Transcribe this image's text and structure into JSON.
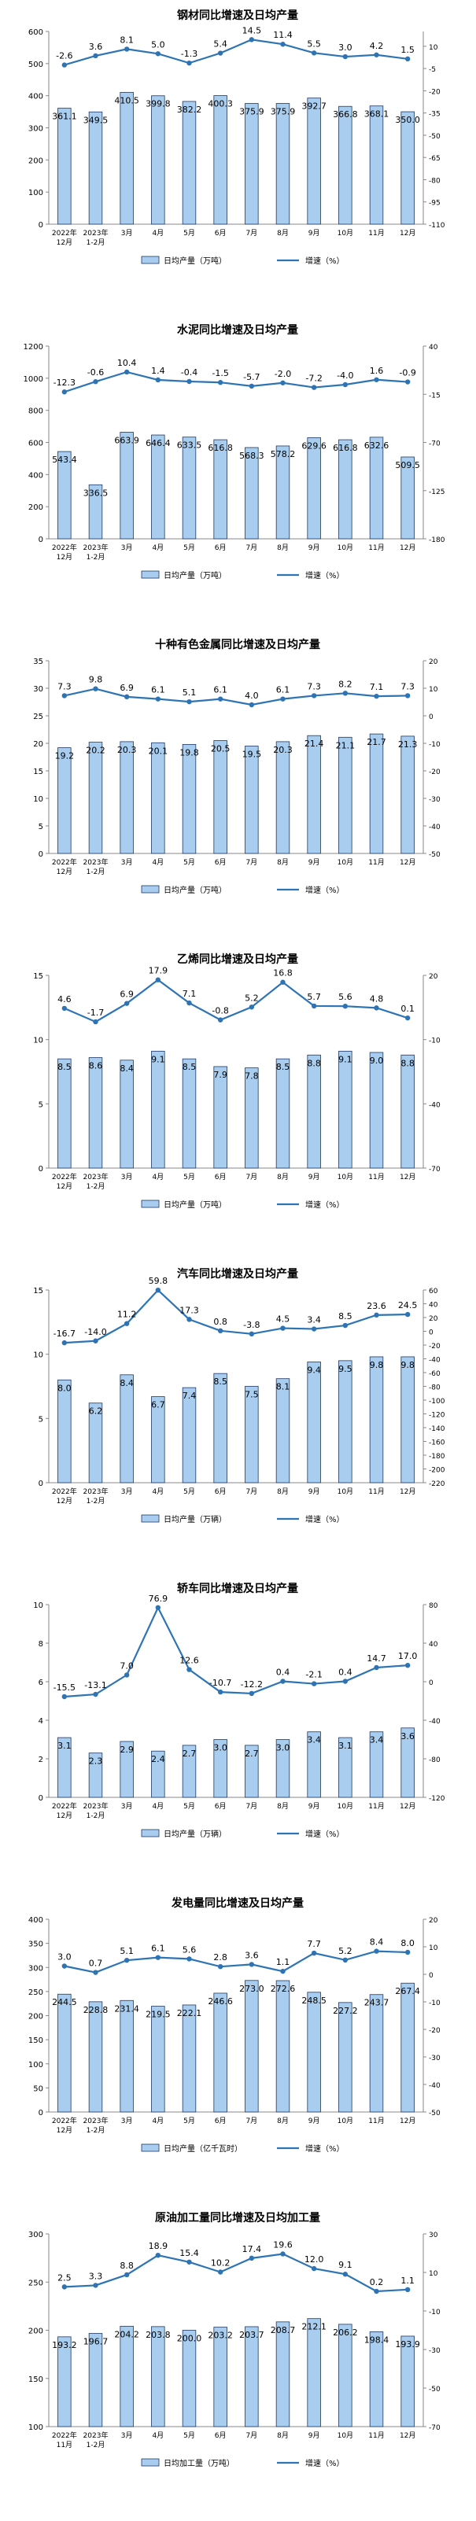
{
  "chart_data": [
    {
      "type": "bar",
      "title": "钢材同比增速及日均产量",
      "categories": [
        [
          "2022年",
          "12月"
        ],
        [
          "2023年",
          "1-2月"
        ],
        [
          "3月"
        ],
        [
          "4月"
        ],
        [
          "5月"
        ],
        [
          "6月"
        ],
        [
          "7月"
        ],
        [
          "8月"
        ],
        [
          "9月"
        ],
        [
          "10月"
        ],
        [
          "11月"
        ],
        [
          "12月"
        ]
      ],
      "series": [
        {
          "name": "日均产量（万吨）",
          "type": "bar",
          "axis": "left",
          "values": [
            361.1,
            349.5,
            410.5,
            399.8,
            382.2,
            400.3,
            375.9,
            375.9,
            392.7,
            366.8,
            368.1,
            350.0
          ]
        },
        {
          "name": "增速（%）",
          "type": "line",
          "axis": "right",
          "values": [
            -2.6,
            3.6,
            8.1,
            5.0,
            -1.3,
            5.4,
            14.5,
            11.4,
            5.5,
            3.0,
            4.2,
            1.5
          ]
        }
      ],
      "ylim_left": [
        0,
        600
      ],
      "ticks_left": [
        0,
        100,
        200,
        300,
        400,
        500,
        600
      ],
      "ylim_right": [
        -110,
        20
      ],
      "ticks_right": [
        -110,
        -95,
        -80,
        -65,
        -50,
        -35,
        -20,
        -5,
        10
      ],
      "grid": false,
      "legend": "bottom",
      "bar_color": "#a9cdee",
      "line_color": "#2e74b5"
    },
    {
      "type": "bar",
      "title": "水泥同比增速及日均产量",
      "categories": [
        [
          "2022年",
          "12月"
        ],
        [
          "2023年",
          "1-2月"
        ],
        [
          "3月"
        ],
        [
          "4月"
        ],
        [
          "5月"
        ],
        [
          "6月"
        ],
        [
          "7月"
        ],
        [
          "8月"
        ],
        [
          "9月"
        ],
        [
          "10月"
        ],
        [
          "11月"
        ],
        [
          "12月"
        ]
      ],
      "series": [
        {
          "name": "日均产量（万吨）",
          "type": "bar",
          "axis": "left",
          "values": [
            543.4,
            336.5,
            663.9,
            646.4,
            633.5,
            616.8,
            568.3,
            578.2,
            629.6,
            616.8,
            632.6,
            509.5
          ]
        },
        {
          "name": "增速（%）",
          "type": "line",
          "axis": "right",
          "values": [
            -12.3,
            -0.6,
            10.4,
            1.4,
            -0.4,
            -1.5,
            -5.7,
            -2.0,
            -7.2,
            -4.0,
            1.6,
            -0.9
          ]
        }
      ],
      "ylim_left": [
        0,
        1200
      ],
      "ticks_left": [
        0,
        200,
        400,
        600,
        800,
        1000,
        1200
      ],
      "ylim_right": [
        -180,
        40
      ],
      "ticks_right": [
        -180,
        -125,
        -70,
        -15,
        40
      ],
      "grid": false,
      "legend": "bottom",
      "bar_color": "#a9cdee",
      "line_color": "#2e74b5"
    },
    {
      "type": "bar",
      "title": "十种有色金属同比增速及日均产量",
      "categories": [
        [
          "2022年",
          "12月"
        ],
        [
          "2023年",
          "1-2月"
        ],
        [
          "3月"
        ],
        [
          "4月"
        ],
        [
          "5月"
        ],
        [
          "6月"
        ],
        [
          "7月"
        ],
        [
          "8月"
        ],
        [
          "9月"
        ],
        [
          "10月"
        ],
        [
          "11月"
        ],
        [
          "12月"
        ]
      ],
      "series": [
        {
          "name": "日均产量（万吨）",
          "type": "bar",
          "axis": "left",
          "values": [
            19.2,
            20.2,
            20.3,
            20.1,
            19.8,
            20.5,
            19.5,
            20.3,
            21.4,
            21.1,
            21.7,
            21.3
          ]
        },
        {
          "name": "增速（%）",
          "type": "line",
          "axis": "right",
          "values": [
            7.3,
            9.8,
            6.9,
            6.1,
            5.1,
            6.1,
            4.0,
            6.1,
            7.3,
            8.2,
            7.1,
            7.3
          ]
        }
      ],
      "ylim_left": [
        0,
        35
      ],
      "ticks_left": [
        0,
        5,
        10,
        15,
        20,
        25,
        30,
        35
      ],
      "ylim_right": [
        -50,
        20
      ],
      "ticks_right": [
        -50,
        -40,
        -30,
        -20,
        -10,
        0,
        10,
        20
      ],
      "grid": false,
      "legend": "bottom",
      "bar_color": "#a9cdee",
      "line_color": "#2e74b5"
    },
    {
      "type": "bar",
      "title": "乙烯同比增速及日均产量",
      "categories": [
        [
          "2022年",
          "12月"
        ],
        [
          "2023年",
          "1-2月"
        ],
        [
          "3月"
        ],
        [
          "4月"
        ],
        [
          "5月"
        ],
        [
          "6月"
        ],
        [
          "7月"
        ],
        [
          "8月"
        ],
        [
          "9月"
        ],
        [
          "10月"
        ],
        [
          "11月"
        ],
        [
          "12月"
        ]
      ],
      "series": [
        {
          "name": "日均产量（万吨）",
          "type": "bar",
          "axis": "left",
          "values": [
            8.5,
            8.6,
            8.4,
            9.1,
            8.5,
            7.9,
            7.8,
            8.5,
            8.8,
            9.1,
            9.0,
            8.8
          ]
        },
        {
          "name": "增速（%）",
          "type": "line",
          "axis": "right",
          "values": [
            4.6,
            -1.7,
            6.9,
            17.9,
            7.1,
            -0.8,
            5.2,
            16.8,
            5.7,
            5.6,
            4.8,
            0.1
          ]
        }
      ],
      "ylim_left": [
        0,
        15
      ],
      "ticks_left": [
        0,
        5,
        10,
        15
      ],
      "ylim_right": [
        -70,
        20
      ],
      "ticks_right": [
        -70,
        -40,
        -10,
        20
      ],
      "grid": false,
      "legend": "bottom",
      "bar_color": "#a9cdee",
      "line_color": "#2e74b5"
    },
    {
      "type": "bar",
      "title": "汽车同比增速及日均产量",
      "categories": [
        [
          "2022年",
          "12月"
        ],
        [
          "2023年",
          "1-2月"
        ],
        [
          "3月"
        ],
        [
          "4月"
        ],
        [
          "5月"
        ],
        [
          "6月"
        ],
        [
          "7月"
        ],
        [
          "8月"
        ],
        [
          "9月"
        ],
        [
          "10月"
        ],
        [
          "11月"
        ],
        [
          "12月"
        ]
      ],
      "series": [
        {
          "name": "日均产量（万辆）",
          "type": "bar",
          "axis": "left",
          "values": [
            8.0,
            6.2,
            8.4,
            6.7,
            7.4,
            8.5,
            7.5,
            8.1,
            9.4,
            9.5,
            9.8,
            9.8
          ]
        },
        {
          "name": "增速（%）",
          "type": "line",
          "axis": "right",
          "values": [
            -16.7,
            -14.0,
            11.2,
            59.8,
            17.3,
            0.8,
            -3.8,
            4.5,
            3.4,
            8.5,
            23.6,
            24.5
          ]
        }
      ],
      "ylim_left": [
        0,
        15
      ],
      "ticks_left": [
        0,
        5,
        10,
        15
      ],
      "ylim_right": [
        -220,
        60
      ],
      "ticks_right": [
        -220,
        -200,
        -180,
        -160,
        -140,
        -120,
        -100,
        -80,
        -60,
        -40,
        -20,
        0,
        20,
        40,
        60
      ],
      "grid": false,
      "legend": "bottom",
      "bar_color": "#a9cdee",
      "line_color": "#2e74b5"
    },
    {
      "type": "bar",
      "title": "轿车同比增速及日均产量",
      "categories": [
        [
          "2022年",
          "12月"
        ],
        [
          "2023年",
          "1-2月"
        ],
        [
          "3月"
        ],
        [
          "4月"
        ],
        [
          "5月"
        ],
        [
          "6月"
        ],
        [
          "7月"
        ],
        [
          "8月"
        ],
        [
          "9月"
        ],
        [
          "10月"
        ],
        [
          "11月"
        ],
        [
          "12月"
        ]
      ],
      "series": [
        {
          "name": "日均产量（万辆）",
          "type": "bar",
          "axis": "left",
          "values": [
            3.1,
            2.3,
            2.9,
            2.4,
            2.7,
            3.0,
            2.7,
            3.0,
            3.4,
            3.1,
            3.4,
            3.6
          ]
        },
        {
          "name": "增速（%）",
          "type": "line",
          "axis": "right",
          "values": [
            -15.5,
            -13.1,
            7.0,
            76.9,
            12.6,
            -10.7,
            -12.2,
            0.4,
            -2.1,
            0.4,
            14.7,
            17.0
          ]
        }
      ],
      "ylim_left": [
        0,
        10
      ],
      "ticks_left": [
        0,
        2,
        4,
        6,
        8,
        10
      ],
      "ylim_right": [
        -120,
        80
      ],
      "ticks_right": [
        -120,
        -80,
        -40,
        0,
        40,
        80
      ],
      "grid": false,
      "legend": "bottom",
      "bar_color": "#a9cdee",
      "line_color": "#2e74b5"
    },
    {
      "type": "bar",
      "title": "发电量同比增速及日均产量",
      "categories": [
        [
          "2022年",
          "12月"
        ],
        [
          "2023年",
          "1-2月"
        ],
        [
          "3月"
        ],
        [
          "4月"
        ],
        [
          "5月"
        ],
        [
          "6月"
        ],
        [
          "7月"
        ],
        [
          "8月"
        ],
        [
          "9月"
        ],
        [
          "10月"
        ],
        [
          "11月"
        ],
        [
          "12月"
        ]
      ],
      "series": [
        {
          "name": "日均产量（亿千瓦时）",
          "type": "bar",
          "axis": "left",
          "values": [
            244.5,
            228.8,
            231.4,
            219.5,
            222.1,
            246.6,
            273.0,
            272.6,
            248.5,
            227.2,
            243.7,
            267.4
          ]
        },
        {
          "name": "增速（%）",
          "type": "line",
          "axis": "right",
          "values": [
            3.0,
            0.7,
            5.1,
            6.1,
            5.6,
            2.8,
            3.6,
            1.1,
            7.7,
            5.2,
            8.4,
            8.0
          ]
        }
      ],
      "ylim_left": [
        0,
        400
      ],
      "ticks_left": [
        0,
        50,
        100,
        150,
        200,
        250,
        300,
        350,
        400
      ],
      "ylim_right": [
        -50,
        20
      ],
      "ticks_right": [
        -50,
        -40,
        -30,
        -20,
        -10,
        0,
        10,
        20
      ],
      "grid": false,
      "legend": "bottom",
      "bar_color": "#a9cdee",
      "line_color": "#2e74b5"
    },
    {
      "type": "bar",
      "title": "原油加工量同比增速及日均加工量",
      "categories": [
        [
          "2022年",
          "11月"
        ],
        [
          "2023年",
          "1-2月"
        ],
        [
          "3月"
        ],
        [
          "4月"
        ],
        [
          "5月"
        ],
        [
          "6月"
        ],
        [
          "7月"
        ],
        [
          "8月"
        ],
        [
          "9月"
        ],
        [
          "10月"
        ],
        [
          "11月"
        ],
        [
          "12月"
        ]
      ],
      "series": [
        {
          "name": "日均加工量（万吨）",
          "type": "bar",
          "axis": "left",
          "values": [
            193.2,
            196.7,
            204.2,
            203.8,
            200.0,
            203.2,
            203.7,
            208.7,
            212.1,
            206.2,
            198.4,
            193.9
          ]
        },
        {
          "name": "增速（%）",
          "type": "line",
          "axis": "right",
          "values": [
            2.5,
            3.3,
            8.8,
            18.9,
            15.4,
            10.2,
            17.4,
            19.6,
            12.0,
            9.1,
            0.2,
            1.1
          ]
        }
      ],
      "ylim_left": [
        100,
        300
      ],
      "ticks_left": [
        100,
        150,
        200,
        250,
        300
      ],
      "ylim_right": [
        -70,
        30
      ],
      "ticks_right": [
        -70,
        -50,
        -30,
        -10,
        10,
        30
      ],
      "grid": false,
      "legend": "bottom",
      "bar_color": "#a9cdee",
      "line_color": "#2e74b5"
    }
  ]
}
